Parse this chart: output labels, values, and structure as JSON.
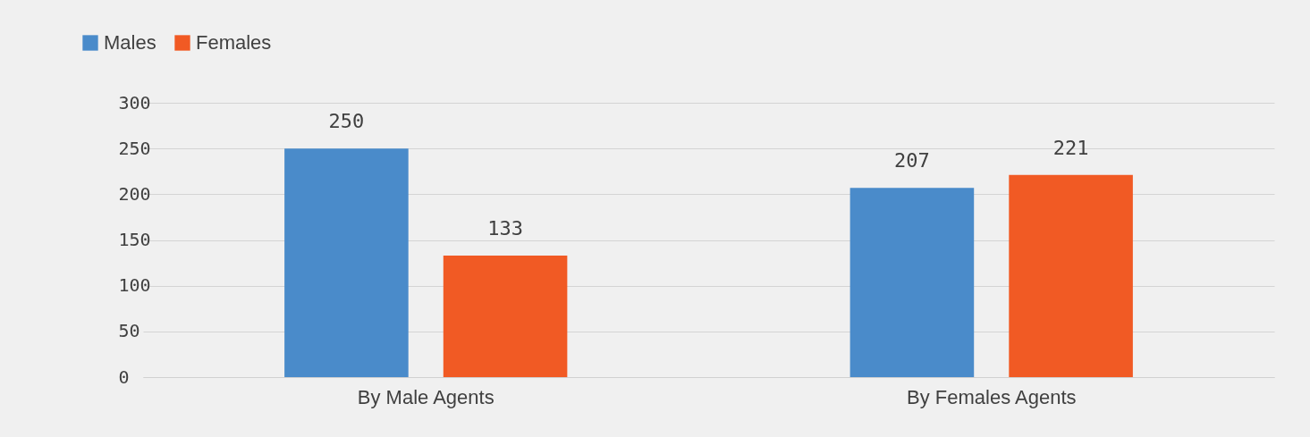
{
  "chart_data": {
    "type": "bar",
    "categories": [
      "By Male Agents",
      "By Females Agents"
    ],
    "series": [
      {
        "name": "Males",
        "color": "#4a8bca",
        "values": [
          250,
          207
        ]
      },
      {
        "name": "Females",
        "color": "#f15a24",
        "values": [
          133,
          221
        ]
      }
    ],
    "ylim": [
      0,
      300
    ],
    "yticks": [
      0,
      50,
      100,
      150,
      200,
      250,
      300
    ],
    "grid": "y",
    "legend": "top left",
    "data_labels": true
  }
}
